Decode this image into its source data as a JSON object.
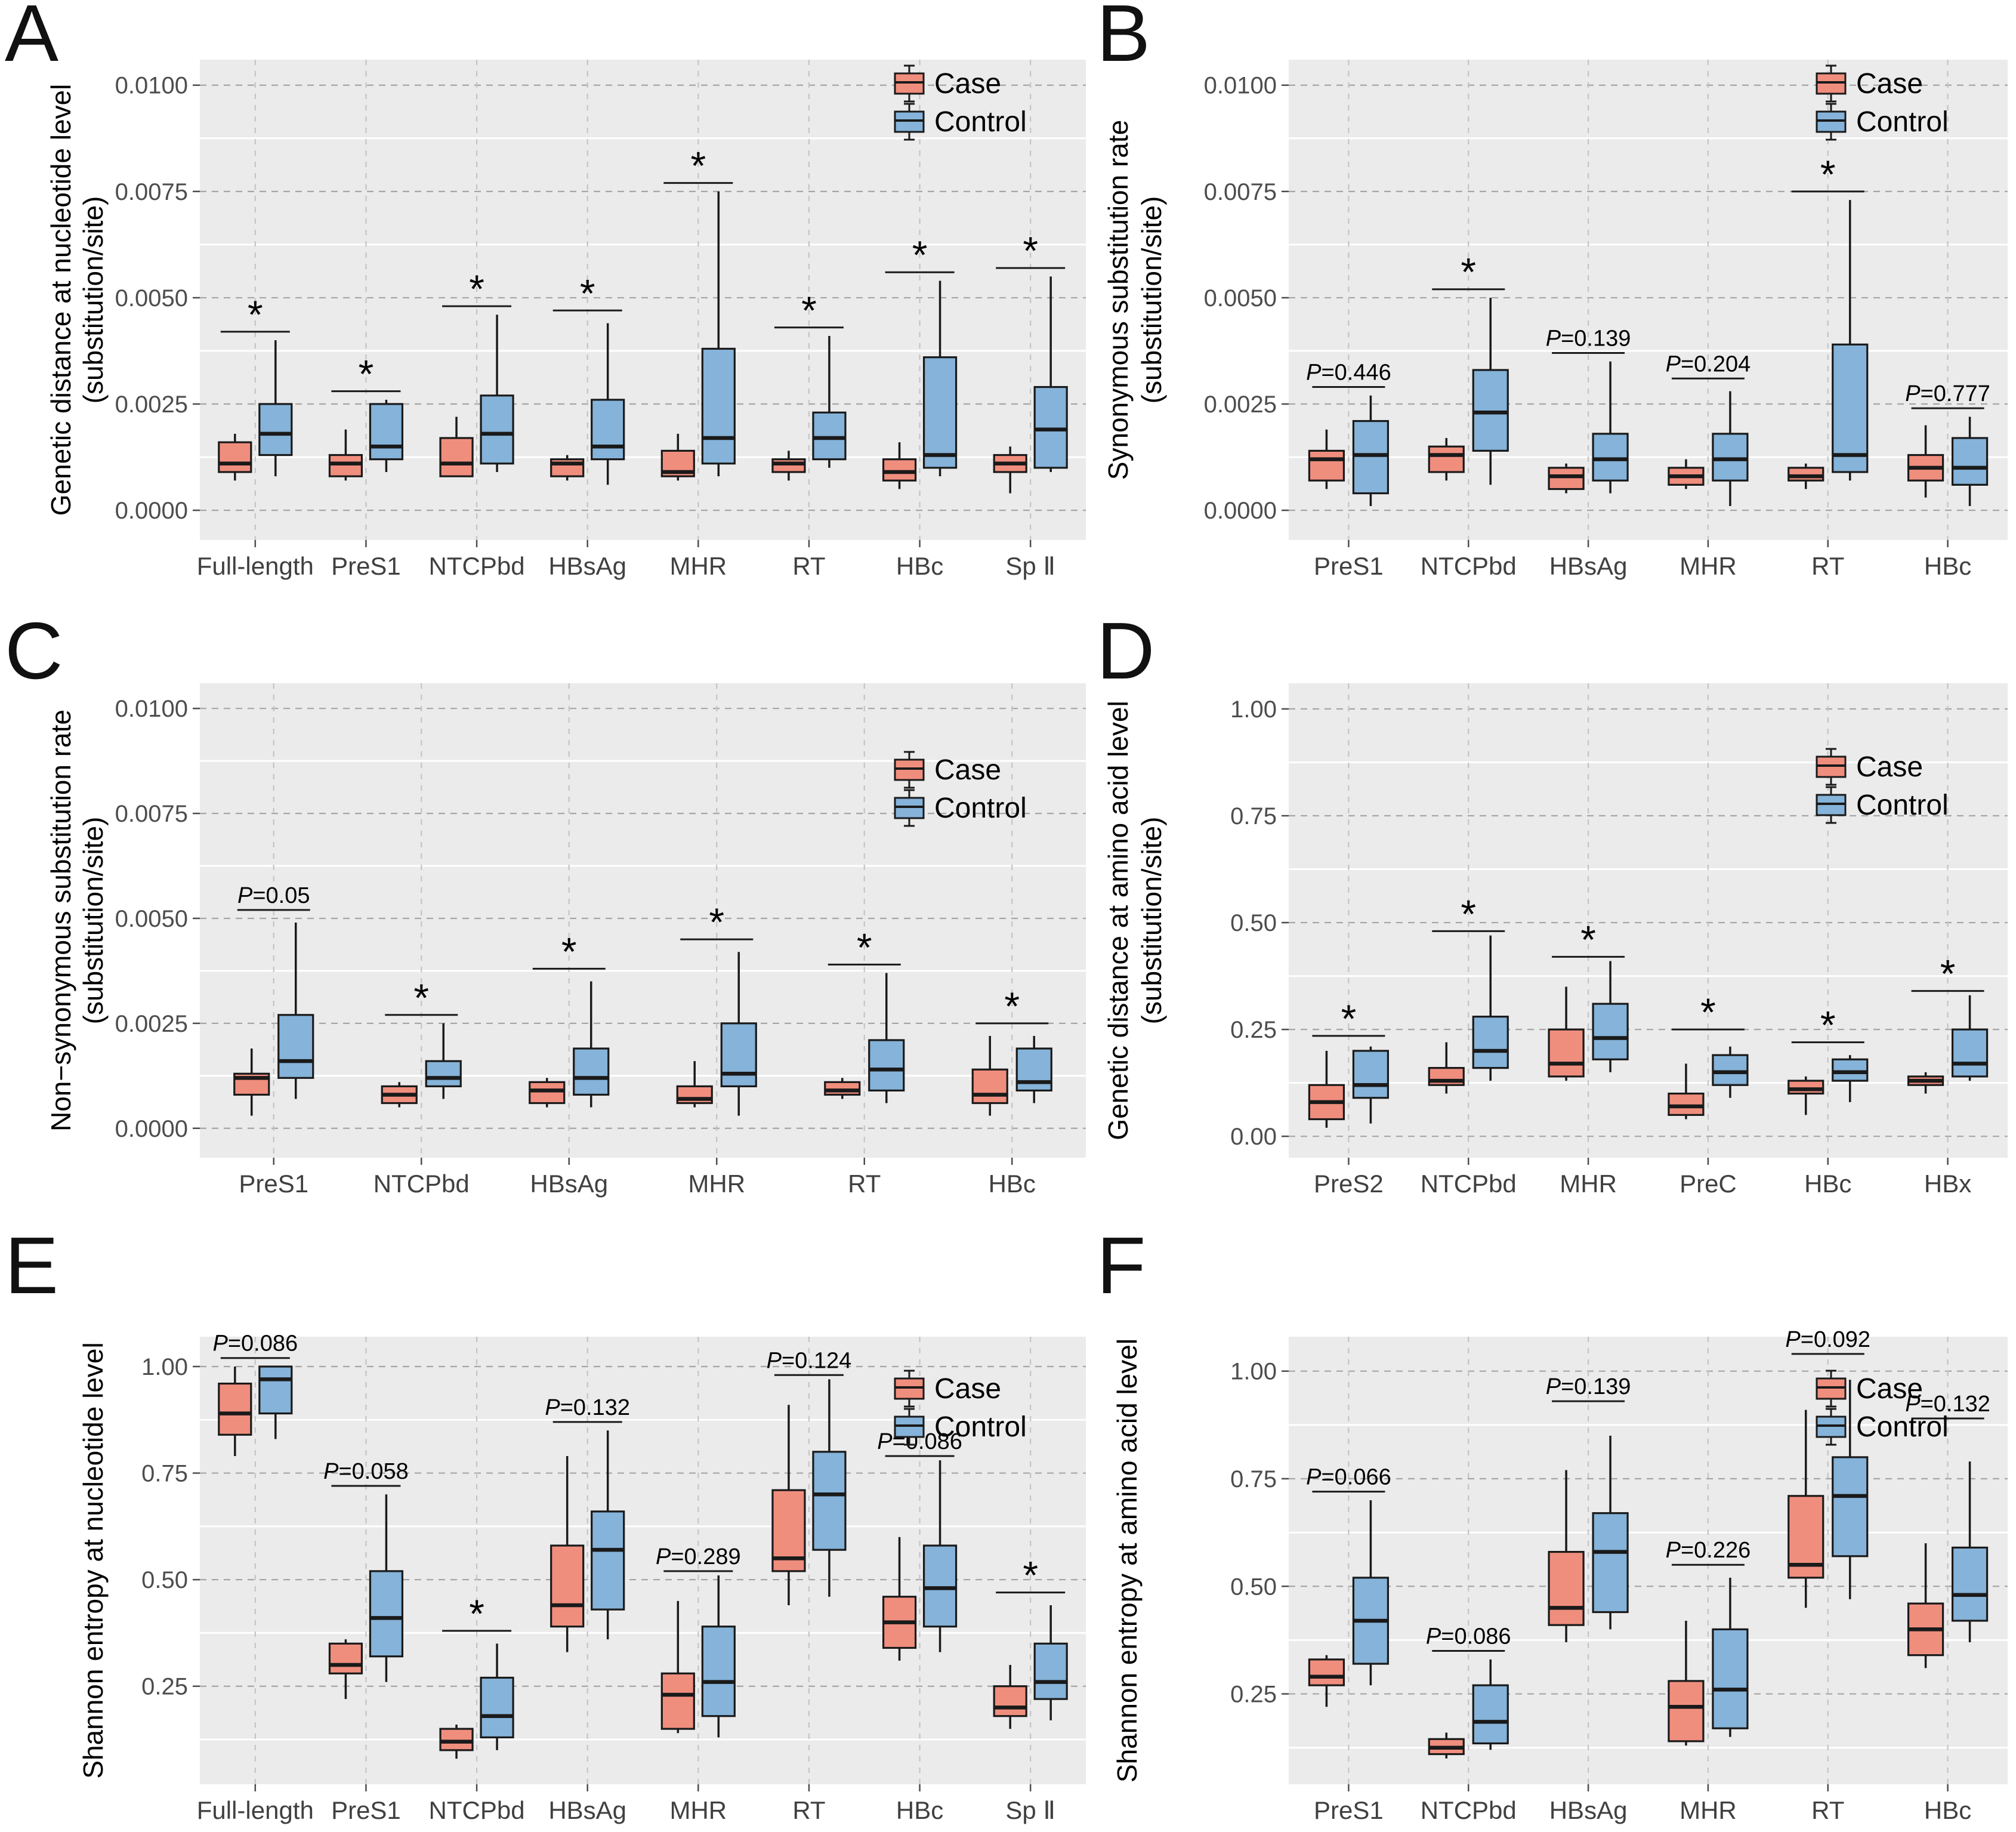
{
  "legend": {
    "case_label": "Case",
    "control_label": "Control"
  },
  "colors": {
    "case_fill": "#F08E7E",
    "control_fill": "#85B3D9",
    "box_stroke": "#1A1A1A",
    "plot_bg": "#EBEBEB",
    "major_grid": "#A6A6A6",
    "minor_grid": "#FFFFFF",
    "vert_grid": "#C4C4C4",
    "tick_text": "#4D4D4D",
    "xlabel_text": "#404040"
  },
  "box_value_order": [
    "min",
    "q1",
    "median",
    "q3",
    "max"
  ],
  "chart_data": [
    {
      "type": "boxplot",
      "letter": "A",
      "ylabel_lines": [
        "Genetic distance at nucleotide level",
        "(substitution/site)"
      ],
      "ylim": [
        -0.0007,
        0.0106
      ],
      "yticks": [
        {
          "v": 0.0,
          "label": "0.0000"
        },
        {
          "v": 0.0025,
          "label": "0.0025"
        },
        {
          "v": 0.005,
          "label": "0.0050"
        },
        {
          "v": 0.0075,
          "label": "0.0075"
        },
        {
          "v": 0.01,
          "label": "0.0100"
        }
      ],
      "minor_ticks": [
        0.00125,
        0.00375,
        0.00625,
        0.00875
      ],
      "boxes": [
        {
          "category": "Full-length",
          "sig": "*",
          "sig_y": 0.0042,
          "case": [
            0.0007,
            0.0009,
            0.0011,
            0.0016,
            0.0018
          ],
          "control": [
            0.0008,
            0.0013,
            0.0018,
            0.0025,
            0.004
          ]
        },
        {
          "category": "PreS1",
          "sig": "*",
          "sig_y": 0.0028,
          "case": [
            0.0007,
            0.0008,
            0.0011,
            0.0013,
            0.0019
          ],
          "control": [
            0.0009,
            0.0012,
            0.0015,
            0.0025,
            0.0026
          ]
        },
        {
          "category": "NTCPbd",
          "sig": "*",
          "sig_y": 0.0048,
          "case": [
            0.0008,
            0.0008,
            0.0011,
            0.0017,
            0.0022
          ],
          "control": [
            0.0009,
            0.0011,
            0.0018,
            0.0027,
            0.0046
          ]
        },
        {
          "category": "HBsAg",
          "sig": "*",
          "sig_y": 0.0047,
          "case": [
            0.0007,
            0.0008,
            0.0011,
            0.0012,
            0.0013
          ],
          "control": [
            0.0006,
            0.0012,
            0.0015,
            0.0026,
            0.0044
          ]
        },
        {
          "category": "MHR",
          "sig": "*",
          "sig_y": 0.0077,
          "case": [
            0.0007,
            0.0008,
            0.0009,
            0.0014,
            0.0018
          ],
          "control": [
            0.0008,
            0.0011,
            0.0017,
            0.0038,
            0.0075
          ]
        },
        {
          "category": "RT",
          "sig": "*",
          "sig_y": 0.0043,
          "case": [
            0.0007,
            0.0009,
            0.0011,
            0.0012,
            0.0014
          ],
          "control": [
            0.001,
            0.0012,
            0.0017,
            0.0023,
            0.0041
          ]
        },
        {
          "category": "HBc",
          "sig": "*",
          "sig_y": 0.0056,
          "case": [
            0.0005,
            0.0007,
            0.0009,
            0.0012,
            0.0016
          ],
          "control": [
            0.0008,
            0.001,
            0.0013,
            0.0036,
            0.0054
          ]
        },
        {
          "category": "Sp Ⅱ",
          "sig": "*",
          "sig_y": 0.0057,
          "case": [
            0.0004,
            0.0009,
            0.0011,
            0.0013,
            0.0015
          ],
          "control": [
            0.0009,
            0.001,
            0.0019,
            0.0029,
            0.0055
          ]
        }
      ]
    },
    {
      "type": "boxplot",
      "letter": "B",
      "ylabel_lines": [
        "Synonymous substitution rate",
        "(substitution/site)"
      ],
      "ylim": [
        -0.0007,
        0.0106
      ],
      "yticks": [
        {
          "v": 0.0,
          "label": "0.0000"
        },
        {
          "v": 0.0025,
          "label": "0.0025"
        },
        {
          "v": 0.005,
          "label": "0.0050"
        },
        {
          "v": 0.0075,
          "label": "0.0075"
        },
        {
          "v": 0.01,
          "label": "0.0100"
        }
      ],
      "minor_ticks": [
        0.00125,
        0.00375,
        0.00625,
        0.00875
      ],
      "boxes": [
        {
          "category": "PreS1",
          "sig": "P=0.446",
          "sig_y": 0.0029,
          "case": [
            0.0005,
            0.0007,
            0.0012,
            0.0014,
            0.0019
          ],
          "control": [
            0.0001,
            0.0004,
            0.0013,
            0.0021,
            0.0027
          ]
        },
        {
          "category": "NTCPbd",
          "sig": "*",
          "sig_y": 0.0052,
          "case": [
            0.0007,
            0.0009,
            0.0013,
            0.0015,
            0.0017
          ],
          "control": [
            0.0006,
            0.0014,
            0.0023,
            0.0033,
            0.005
          ]
        },
        {
          "category": "HBsAg",
          "sig": "P=0.139",
          "sig_y": 0.0037,
          "case": [
            0.0004,
            0.0005,
            0.0008,
            0.001,
            0.0011
          ],
          "control": [
            0.0004,
            0.0007,
            0.0012,
            0.0018,
            0.0035
          ]
        },
        {
          "category": "MHR",
          "sig": "P=0.204",
          "sig_y": 0.0031,
          "case": [
            0.0005,
            0.0006,
            0.0008,
            0.001,
            0.0012
          ],
          "control": [
            0.0001,
            0.0007,
            0.0012,
            0.0018,
            0.0028
          ]
        },
        {
          "category": "RT",
          "sig": "*",
          "sig_y": 0.0075,
          "case": [
            0.0005,
            0.0007,
            0.0008,
            0.001,
            0.0011
          ],
          "control": [
            0.0007,
            0.0009,
            0.0013,
            0.0039,
            0.0073
          ]
        },
        {
          "category": "HBc",
          "sig": "P=0.777",
          "sig_y": 0.0024,
          "case": [
            0.0003,
            0.0007,
            0.001,
            0.0013,
            0.002
          ],
          "control": [
            0.0001,
            0.0006,
            0.001,
            0.0017,
            0.0022
          ]
        }
      ]
    },
    {
      "type": "boxplot",
      "letter": "C",
      "ylabel_lines": [
        "Non−synonymous substitution rate",
        "(substitution/site)"
      ],
      "ylim": [
        -0.0007,
        0.0106
      ],
      "yticks": [
        {
          "v": 0.0,
          "label": "0.0000"
        },
        {
          "v": 0.0025,
          "label": "0.0025"
        },
        {
          "v": 0.005,
          "label": "0.0050"
        },
        {
          "v": 0.0075,
          "label": "0.0075"
        },
        {
          "v": 0.01,
          "label": "0.0100"
        }
      ],
      "minor_ticks": [
        0.00125,
        0.00375,
        0.00625,
        0.00875
      ],
      "boxes": [
        {
          "category": "PreS1",
          "sig": "P=0.05",
          "sig_y": 0.0052,
          "case": [
            0.0003,
            0.0008,
            0.0012,
            0.0013,
            0.0019
          ],
          "control": [
            0.0007,
            0.0012,
            0.0016,
            0.0027,
            0.0049
          ]
        },
        {
          "category": "NTCPbd",
          "sig": "*",
          "sig_y": 0.0027,
          "case": [
            0.0005,
            0.0006,
            0.0008,
            0.001,
            0.0011
          ],
          "control": [
            0.0007,
            0.001,
            0.0012,
            0.0016,
            0.0025
          ]
        },
        {
          "category": "HBsAg",
          "sig": "*",
          "sig_y": 0.0038,
          "case": [
            0.0005,
            0.0006,
            0.0009,
            0.0011,
            0.0012
          ],
          "control": [
            0.0005,
            0.0008,
            0.0012,
            0.0019,
            0.0035
          ]
        },
        {
          "category": "MHR",
          "sig": "*",
          "sig_y": 0.0045,
          "case": [
            0.0005,
            0.0006,
            0.0007,
            0.001,
            0.0016
          ],
          "control": [
            0.0003,
            0.001,
            0.0013,
            0.0025,
            0.0042
          ]
        },
        {
          "category": "RT",
          "sig": "*",
          "sig_y": 0.0039,
          "case": [
            0.0007,
            0.0008,
            0.0009,
            0.0011,
            0.0012
          ],
          "control": [
            0.0006,
            0.0009,
            0.0014,
            0.0021,
            0.0037
          ]
        },
        {
          "category": "HBc",
          "sig": "*",
          "sig_y": 0.0025,
          "case": [
            0.0003,
            0.0006,
            0.0008,
            0.0014,
            0.0022
          ],
          "control": [
            0.0006,
            0.0009,
            0.0011,
            0.0019,
            0.0022
          ]
        }
      ]
    },
    {
      "type": "boxplot",
      "letter": "D",
      "ylabel_lines": [
        "Genetic distance at amino acid level",
        "(substitution/site)"
      ],
      "ylim": [
        -0.05,
        1.06
      ],
      "yticks": [
        {
          "v": 0.0,
          "label": "0.00"
        },
        {
          "v": 0.25,
          "label": "0.25"
        },
        {
          "v": 0.5,
          "label": "0.50"
        },
        {
          "v": 0.75,
          "label": "0.75"
        },
        {
          "v": 1.0,
          "label": "1.00"
        }
      ],
      "minor_ticks": [
        0.125,
        0.375,
        0.625,
        0.875
      ],
      "boxes": [
        {
          "category": "PreS2",
          "sig": "*",
          "sig_y": 0.235,
          "case": [
            0.02,
            0.04,
            0.08,
            0.12,
            0.2
          ],
          "control": [
            0.03,
            0.09,
            0.12,
            0.2,
            0.21
          ]
        },
        {
          "category": "NTCPbd",
          "sig": "*",
          "sig_y": 0.48,
          "case": [
            0.1,
            0.12,
            0.13,
            0.16,
            0.22
          ],
          "control": [
            0.13,
            0.16,
            0.2,
            0.28,
            0.47
          ]
        },
        {
          "category": "MHR",
          "sig": "*",
          "sig_y": 0.42,
          "case": [
            0.13,
            0.14,
            0.17,
            0.25,
            0.35
          ],
          "control": [
            0.15,
            0.18,
            0.23,
            0.31,
            0.41
          ]
        },
        {
          "category": "PreC",
          "sig": "*",
          "sig_y": 0.25,
          "case": [
            0.04,
            0.05,
            0.07,
            0.1,
            0.17
          ],
          "control": [
            0.09,
            0.12,
            0.15,
            0.19,
            0.21
          ]
        },
        {
          "category": "HBc",
          "sig": "*",
          "sig_y": 0.22,
          "case": [
            0.05,
            0.1,
            0.11,
            0.13,
            0.14
          ],
          "control": [
            0.08,
            0.13,
            0.15,
            0.18,
            0.19
          ]
        },
        {
          "category": "HBx",
          "sig": "*",
          "sig_y": 0.34,
          "case": [
            0.1,
            0.12,
            0.13,
            0.14,
            0.15
          ],
          "control": [
            0.13,
            0.14,
            0.17,
            0.25,
            0.33
          ]
        }
      ]
    },
    {
      "type": "boxplot",
      "letter": "E",
      "ylabel_lines": [
        "Shannon entropy at nucleotide level"
      ],
      "ylim": [
        0.02,
        1.07
      ],
      "yticks": [
        {
          "v": 0.25,
          "label": "0.25"
        },
        {
          "v": 0.5,
          "label": "0.50"
        },
        {
          "v": 0.75,
          "label": "0.75"
        },
        {
          "v": 1.0,
          "label": "1.00"
        }
      ],
      "minor_ticks": [
        0.125,
        0.375,
        0.625,
        0.875
      ],
      "boxes": [
        {
          "category": "Full-length",
          "sig": "P=0.086",
          "sig_y": 1.02,
          "case": [
            0.79,
            0.84,
            0.89,
            0.96,
            1.0
          ],
          "control": [
            0.83,
            0.89,
            0.97,
            1.0,
            1.0
          ]
        },
        {
          "category": "PreS1",
          "sig": "P=0.058",
          "sig_y": 0.72,
          "case": [
            0.22,
            0.28,
            0.3,
            0.35,
            0.36
          ],
          "control": [
            0.26,
            0.32,
            0.41,
            0.52,
            0.7
          ]
        },
        {
          "category": "NTCPbd",
          "sig": "*",
          "sig_y": 0.38,
          "case": [
            0.08,
            0.1,
            0.12,
            0.15,
            0.16
          ],
          "control": [
            0.1,
            0.13,
            0.18,
            0.27,
            0.35
          ]
        },
        {
          "category": "HBsAg",
          "sig": "P=0.132",
          "sig_y": 0.87,
          "case": [
            0.33,
            0.39,
            0.44,
            0.58,
            0.79
          ],
          "control": [
            0.36,
            0.43,
            0.57,
            0.66,
            0.85
          ]
        },
        {
          "category": "MHR",
          "sig": "P=0.289",
          "sig_y": 0.52,
          "case": [
            0.14,
            0.15,
            0.23,
            0.28,
            0.45
          ],
          "control": [
            0.13,
            0.18,
            0.26,
            0.39,
            0.51
          ]
        },
        {
          "category": "RT",
          "sig": "P=0.124",
          "sig_y": 0.98,
          "case": [
            0.44,
            0.52,
            0.55,
            0.71,
            0.91
          ],
          "control": [
            0.46,
            0.57,
            0.7,
            0.8,
            0.97
          ]
        },
        {
          "category": "HBc",
          "sig": "P=0.086",
          "sig_y": 0.79,
          "case": [
            0.31,
            0.34,
            0.4,
            0.46,
            0.6
          ],
          "control": [
            0.33,
            0.39,
            0.48,
            0.58,
            0.78
          ]
        },
        {
          "category": "Sp Ⅱ",
          "sig": "*",
          "sig_y": 0.47,
          "case": [
            0.15,
            0.18,
            0.2,
            0.25,
            0.3
          ],
          "control": [
            0.17,
            0.22,
            0.26,
            0.35,
            0.44
          ]
        }
      ]
    },
    {
      "type": "boxplot",
      "letter": "F",
      "ylabel_lines": [
        "Shannon entropy at amino acid level"
      ],
      "ylim": [
        0.04,
        1.08
      ],
      "yticks": [
        {
          "v": 0.25,
          "label": "0.25"
        },
        {
          "v": 0.5,
          "label": "0.50"
        },
        {
          "v": 0.75,
          "label": "0.75"
        },
        {
          "v": 1.0,
          "label": "1.00"
        }
      ],
      "minor_ticks": [
        0.125,
        0.375,
        0.625,
        0.875
      ],
      "boxes": [
        {
          "category": "PreS1",
          "sig": "P=0.066",
          "sig_y": 0.72,
          "case": [
            0.22,
            0.27,
            0.29,
            0.33,
            0.34
          ],
          "control": [
            0.27,
            0.32,
            0.42,
            0.52,
            0.7
          ]
        },
        {
          "category": "NTCPbd",
          "sig": "P=0.086",
          "sig_y": 0.35,
          "case": [
            0.1,
            0.11,
            0.125,
            0.145,
            0.16
          ],
          "control": [
            0.12,
            0.135,
            0.185,
            0.27,
            0.33
          ]
        },
        {
          "category": "HBsAg",
          "sig": "P=0.139",
          "sig_y": 0.93,
          "case": [
            0.37,
            0.41,
            0.45,
            0.58,
            0.77
          ],
          "control": [
            0.4,
            0.44,
            0.58,
            0.67,
            0.85
          ]
        },
        {
          "category": "MHR",
          "sig": "P=0.226",
          "sig_y": 0.55,
          "case": [
            0.13,
            0.14,
            0.22,
            0.28,
            0.42
          ],
          "control": [
            0.15,
            0.17,
            0.26,
            0.4,
            0.52
          ]
        },
        {
          "category": "RT",
          "sig": "P=0.092",
          "sig_y": 1.04,
          "case": [
            0.45,
            0.52,
            0.55,
            0.71,
            0.91
          ],
          "control": [
            0.47,
            0.57,
            0.71,
            0.8,
            0.98
          ]
        },
        {
          "category": "HBc",
          "sig": "P=0.132",
          "sig_y": 0.89,
          "case": [
            0.31,
            0.34,
            0.4,
            0.46,
            0.6
          ],
          "control": [
            0.37,
            0.42,
            0.48,
            0.59,
            0.79
          ]
        }
      ]
    }
  ]
}
